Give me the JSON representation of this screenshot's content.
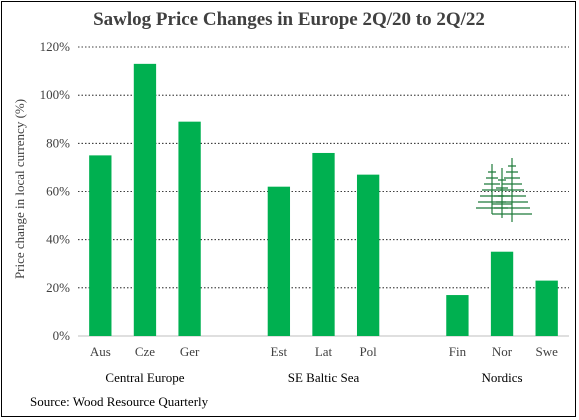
{
  "chart_data": {
    "type": "bar",
    "title": "Sawlog Price Changes in Europe 2Q/20 to 2Q/22",
    "ylabel": "Price change in local currency (%)",
    "xlabel": "",
    "categories": [
      "Aus",
      "Cze",
      "Ger",
      "Est",
      "Lat",
      "Pol",
      "Fin",
      "Nor",
      "Swe"
    ],
    "values": [
      75,
      113,
      89,
      62,
      76,
      67,
      17,
      35,
      23
    ],
    "groups": [
      {
        "name": "Central Europe",
        "categories": [
          "Aus",
          "Cze",
          "Ger"
        ]
      },
      {
        "name": "SE Baltic Sea",
        "categories": [
          "Est",
          "Lat",
          "Pol"
        ]
      },
      {
        "name": "Nordics",
        "categories": [
          "Fin",
          "Nor",
          "Swe"
        ]
      }
    ],
    "ylim": [
      0,
      120
    ],
    "yticks": [
      "0%",
      "20%",
      "40%",
      "60%",
      "80%",
      "100%",
      "120%"
    ],
    "ytick_values": [
      0,
      20,
      40,
      60,
      80,
      100,
      120
    ],
    "grid": "horizontal dotted",
    "bar_color": "#00b050",
    "source": "Source: Wood Resource Quarterly"
  },
  "logo": {
    "name": "wood-resource-quarterly-tree-logo",
    "color": "#1f7a3a"
  }
}
